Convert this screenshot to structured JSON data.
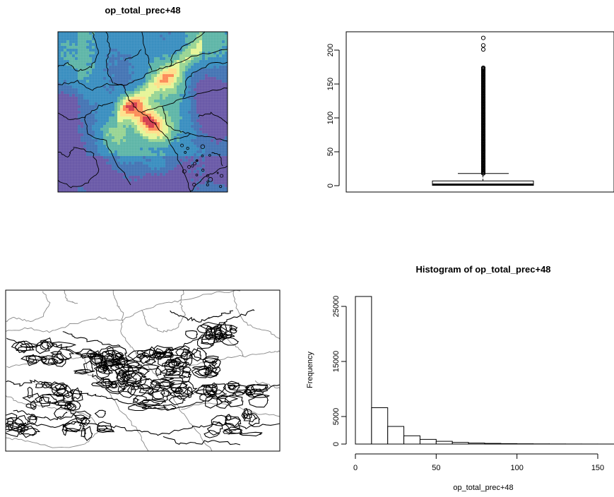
{
  "chart_data": [
    {
      "type": "heatmap",
      "title": "op_total_prec+48",
      "colors": [
        "#6a5aa8",
        "#4575b4",
        "#3a8fc0",
        "#5fb6a8",
        "#99d594",
        "#e6f598",
        "#fee08b",
        "#fc8d59",
        "#d53e4f"
      ]
    },
    {
      "type": "boxplot",
      "title": "",
      "yticks": [
        0,
        50,
        100,
        150,
        200
      ],
      "ylim": [
        0,
        220
      ],
      "stats": {
        "min": 0,
        "q1": 0.5,
        "median": 1.5,
        "q3": 7,
        "whisker_high": 18
      },
      "outliers": [
        18,
        20,
        22,
        25,
        28,
        31,
        35,
        40,
        45,
        50,
        55,
        60,
        65,
        70,
        75,
        80,
        85,
        90,
        95,
        100,
        105,
        110,
        115,
        120,
        125,
        130,
        135,
        140,
        145,
        150,
        155,
        160,
        163,
        166,
        169,
        172,
        175,
        201,
        207,
        218
      ]
    },
    {
      "type": "contour",
      "title": ""
    },
    {
      "type": "bar",
      "title": "Histogram of op_total_prec+48",
      "xlabel": "op_total_prec+48",
      "ylabel": "Frequency",
      "xticks": [
        0,
        50,
        100,
        150
      ],
      "yticks": [
        0,
        5000,
        15000,
        25000
      ],
      "xlim": [
        -3,
        160
      ],
      "ylim": [
        0,
        27000
      ],
      "bins": [
        {
          "x0": 0,
          "x1": 10,
          "count": 26800
        },
        {
          "x0": 10,
          "x1": 20,
          "count": 6600
        },
        {
          "x0": 20,
          "x1": 30,
          "count": 3200
        },
        {
          "x0": 30,
          "x1": 40,
          "count": 1500
        },
        {
          "x0": 40,
          "x1": 50,
          "count": 850
        },
        {
          "x0": 50,
          "x1": 60,
          "count": 500
        },
        {
          "x0": 60,
          "x1": 70,
          "count": 300
        },
        {
          "x0": 70,
          "x1": 80,
          "count": 180
        },
        {
          "x0": 80,
          "x1": 90,
          "count": 120
        },
        {
          "x0": 90,
          "x1": 100,
          "count": 80
        },
        {
          "x0": 100,
          "x1": 110,
          "count": 50
        },
        {
          "x0": 110,
          "x1": 120,
          "count": 30
        },
        {
          "x0": 120,
          "x1": 130,
          "count": 20
        },
        {
          "x0": 130,
          "x1": 140,
          "count": 12
        },
        {
          "x0": 140,
          "x1": 150,
          "count": 8
        },
        {
          "x0": 150,
          "x1": 160,
          "count": 5
        }
      ]
    }
  ]
}
